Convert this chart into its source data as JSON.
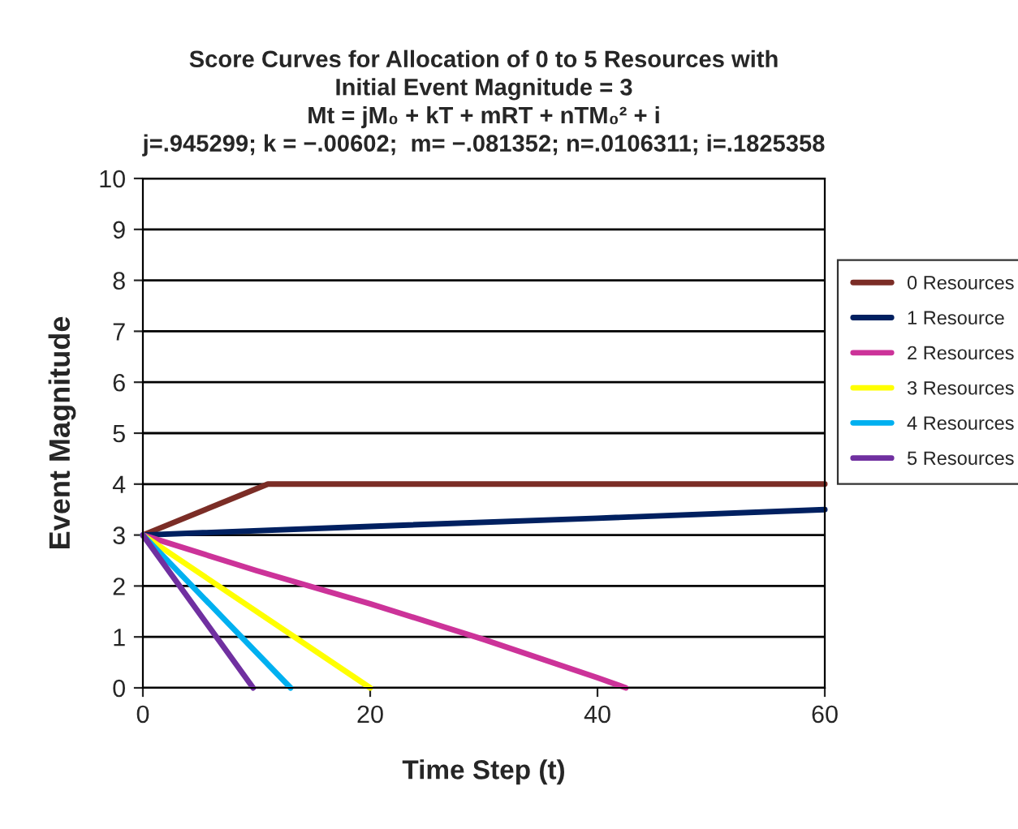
{
  "chart_data": {
    "type": "line",
    "title": "Score Curves for Allocation of 0 to 5 Resources with\nInitial Event Magnitude = 3\nMt = jM₀ + kT + mRT + nTM₀² + i\nj=.945299; k = −.00602;  m= −.081352; n=.0106311; i=.1825358",
    "xlabel": "Time Step (t)",
    "ylabel": "Event Magnitude",
    "series": [
      {
        "name": "0 Resources",
        "color": "#7b2d26",
        "x": [
          0,
          11,
          60
        ],
        "values": [
          3,
          4,
          4
        ]
      },
      {
        "name": "1 Resource",
        "color": "#002060",
        "x": [
          0,
          20,
          40,
          60
        ],
        "values": [
          3.0,
          3.17,
          3.33,
          3.5
        ]
      },
      {
        "name": "2 Resources",
        "color": "#cc3399",
        "x": [
          0,
          10,
          20,
          30,
          40,
          42.5
        ],
        "values": [
          3,
          2.3,
          1.65,
          0.95,
          0.2,
          0
        ]
      },
      {
        "name": "3 Resources",
        "color": "#ffff00",
        "x": [
          0,
          20
        ],
        "values": [
          3,
          0
        ]
      },
      {
        "name": "4 Resources",
        "color": "#00b0f0",
        "x": [
          0,
          13
        ],
        "values": [
          3,
          0
        ]
      },
      {
        "name": "5 Resources",
        "color": "#7030a0",
        "x": [
          0,
          9.7
        ],
        "values": [
          3,
          0
        ]
      }
    ],
    "xlim": [
      0,
      60
    ],
    "xticks": [
      0,
      20,
      40,
      60
    ],
    "ylim": [
      0,
      10
    ],
    "yticks": [
      0,
      1,
      2,
      3,
      4,
      5,
      6,
      7,
      8,
      9,
      10
    ],
    "grid": "y",
    "legend": "right",
    "line_style": "solid",
    "marker": "none"
  }
}
